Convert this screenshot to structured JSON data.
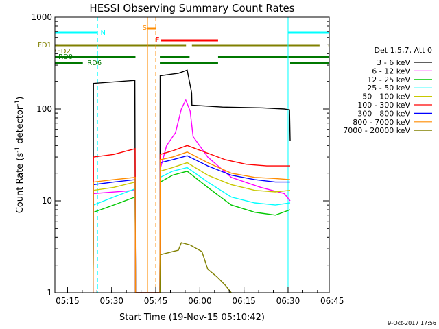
{
  "chart_data": {
    "type": "line",
    "title": "HESSI Observing Summary Count Rates",
    "xlabel": "Start Time (19-Nov-15 05:10:42)",
    "ylabel_main": "Count Rate (s",
    "ylabel_sup1": "-1",
    "ylabel_mid": " detector",
    "ylabel_sup2": "-1",
    "ylabel_end": ")",
    "y_scale": "log",
    "ylim": [
      1,
      1000
    ],
    "xlim_minutes": [
      0,
      93.3
    ],
    "x_ticks": [
      {
        "label": "05:15",
        "min": 4.3
      },
      {
        "label": "05:30",
        "min": 19.3
      },
      {
        "label": "05:45",
        "min": 34.3
      },
      {
        "label": "06:00",
        "min": 49.3
      },
      {
        "label": "06:15",
        "min": 64.3
      },
      {
        "label": "06:30",
        "min": 79.3
      },
      {
        "label": "06:45",
        "min": 94.3
      }
    ],
    "y_ticks": [
      {
        "label": "1",
        "v": 1
      },
      {
        "label": "10",
        "v": 10
      },
      {
        "label": "100",
        "v": 100
      },
      {
        "label": "1000",
        "v": 1000
      }
    ],
    "legend_title": "Det 1,5,7, Att 0",
    "legend_position": "right",
    "series": [
      {
        "name": "3 - 6 keV",
        "color": "#000000",
        "pts": [
          [
            13,
            1
          ],
          [
            13.1,
            190
          ],
          [
            27.2,
            205
          ],
          [
            27.4,
            1
          ],
          [
            35.7,
            1
          ],
          [
            35.8,
            230
          ],
          [
            42,
            245
          ],
          [
            45,
            265
          ],
          [
            46.5,
            150
          ],
          [
            46.6,
            110
          ],
          [
            57,
            105
          ],
          [
            70,
            103
          ],
          [
            78,
            100
          ],
          [
            79.8,
            98
          ],
          [
            80,
            45
          ]
        ]
      },
      {
        "name": "6 - 12 keV",
        "color": "#ff00ff",
        "pts": [
          [
            13,
            1
          ],
          [
            13.1,
            12
          ],
          [
            27.3,
            13
          ],
          [
            27.4,
            1
          ],
          [
            35.7,
            1
          ],
          [
            35.8,
            22
          ],
          [
            38,
            40
          ],
          [
            41,
            55
          ],
          [
            43,
            100
          ],
          [
            44.5,
            125
          ],
          [
            46,
            95
          ],
          [
            47,
            50
          ],
          [
            52,
            30
          ],
          [
            60,
            18
          ],
          [
            70,
            14
          ],
          [
            78,
            12
          ],
          [
            80,
            10
          ]
        ]
      },
      {
        "name": "12 - 25 keV",
        "color": "#00c800",
        "pts": [
          [
            13,
            1
          ],
          [
            13.1,
            7.5
          ],
          [
            20,
            9
          ],
          [
            27.3,
            11
          ],
          [
            27.4,
            1
          ],
          [
            35.7,
            1
          ],
          [
            35.8,
            16
          ],
          [
            40,
            19
          ],
          [
            45,
            21
          ],
          [
            52,
            14
          ],
          [
            60,
            9
          ],
          [
            68,
            7.5
          ],
          [
            75,
            7
          ],
          [
            80,
            8
          ]
        ]
      },
      {
        "name": "25 - 50 keV",
        "color": "#00ffff",
        "pts": [
          [
            13,
            1
          ],
          [
            13.1,
            9
          ],
          [
            20,
            11
          ],
          [
            27.3,
            13.5
          ],
          [
            27.4,
            1
          ],
          [
            35.7,
            1
          ],
          [
            35.8,
            18
          ],
          [
            40,
            21
          ],
          [
            45,
            23
          ],
          [
            52,
            16
          ],
          [
            60,
            11
          ],
          [
            68,
            9.5
          ],
          [
            75,
            9
          ],
          [
            80,
            9.5
          ]
        ]
      },
      {
        "name": "50 - 100 keV",
        "color": "#c8c800",
        "pts": [
          [
            13,
            1
          ],
          [
            13.1,
            13
          ],
          [
            20,
            14
          ],
          [
            27.3,
            16
          ],
          [
            27.4,
            1
          ],
          [
            35.7,
            1
          ],
          [
            35.8,
            21
          ],
          [
            40,
            23
          ],
          [
            45,
            26
          ],
          [
            52,
            19
          ],
          [
            60,
            15
          ],
          [
            68,
            13
          ],
          [
            75,
            12.5
          ],
          [
            80,
            13
          ]
        ]
      },
      {
        "name": "100 - 300 keV",
        "color": "#ff0000",
        "pts": [
          [
            13,
            1
          ],
          [
            13.1,
            30
          ],
          [
            20,
            32
          ],
          [
            27.3,
            37
          ],
          [
            27.4,
            1
          ],
          [
            35.7,
            1
          ],
          [
            35.8,
            32
          ],
          [
            40,
            35
          ],
          [
            45,
            40
          ],
          [
            52,
            33
          ],
          [
            58,
            28
          ],
          [
            65,
            25
          ],
          [
            72,
            24
          ],
          [
            80,
            24
          ]
        ]
      },
      {
        "name": "300 - 800 keV",
        "color": "#0000ff",
        "pts": [
          [
            13,
            1
          ],
          [
            13.1,
            15
          ],
          [
            20,
            16
          ],
          [
            27.3,
            17
          ],
          [
            27.4,
            1
          ],
          [
            35.7,
            1
          ],
          [
            35.8,
            26
          ],
          [
            40,
            28
          ],
          [
            45,
            31
          ],
          [
            52,
            24
          ],
          [
            60,
            19
          ],
          [
            68,
            17
          ],
          [
            75,
            16
          ],
          [
            80,
            16
          ]
        ]
      },
      {
        "name": "800 - 7000 keV",
        "color": "#ff8c00",
        "pts": [
          [
            13,
            1
          ],
          [
            13.1,
            16
          ],
          [
            20,
            17
          ],
          [
            27.3,
            18
          ],
          [
            27.4,
            1
          ],
          [
            35.7,
            1
          ],
          [
            35.8,
            28
          ],
          [
            40,
            30
          ],
          [
            45,
            34
          ],
          [
            52,
            26
          ],
          [
            60,
            20
          ],
          [
            68,
            18
          ],
          [
            75,
            17.5
          ],
          [
            80,
            17
          ]
        ]
      },
      {
        "name": "7000 - 20000 keV",
        "color": "#808000",
        "pts": [
          [
            35.8,
            1
          ],
          [
            36,
            2.6
          ],
          [
            42,
            2.9
          ],
          [
            43,
            3.5
          ],
          [
            46,
            3.3
          ],
          [
            50,
            2.8
          ],
          [
            52,
            1.8
          ],
          [
            55,
            1.5
          ],
          [
            58,
            1.2
          ],
          [
            60,
            1
          ]
        ]
      }
    ],
    "flags": [
      {
        "label": "N",
        "color": "#00ffff",
        "segments": [
          [
            0,
            14.5
          ],
          [
            79.3,
            93.3
          ]
        ],
        "label_at": 15.5
      },
      {
        "label": "S",
        "color": "#ff8c00",
        "segments": [
          [
            31.5,
            34.3
          ]
        ],
        "label_at": 29.8
      },
      {
        "label": "F",
        "color": "#ff0000",
        "segments": [
          [
            36,
            55.5
          ]
        ],
        "label_at": 34.2
      },
      {
        "label": "FD1",
        "color": "#808000",
        "segments": [
          [
            0,
            44.6
          ],
          [
            46.6,
            90
          ],
          [
            93,
            93.3
          ]
        ],
        "label_at": -5
      },
      {
        "label": "FD2",
        "color": "#808000",
        "segments": [
          [
            0,
            0.4
          ]
        ],
        "label_at": 0.7
      },
      {
        "label": "RD0",
        "color": "#007800",
        "segments": [
          [
            0,
            27.4
          ],
          [
            35.7,
            45.8
          ],
          [
            55.5,
            93.3
          ]
        ],
        "label_at": 1.2
      },
      {
        "label": "RD6",
        "color": "#007800",
        "segments": [
          [
            0,
            9.5
          ],
          [
            35.7,
            55.5
          ],
          [
            80,
            93.3
          ]
        ],
        "label_at": 11
      }
    ],
    "vertical_markers": [
      {
        "min": 14.5,
        "color": "#00ffff",
        "style": "dashed"
      },
      {
        "min": 31.5,
        "color": "#ff8c00",
        "style": "solid"
      },
      {
        "min": 34.3,
        "color": "#ff8c00",
        "style": "dashed"
      },
      {
        "min": 79.3,
        "color": "#00ffff",
        "style": "solid"
      },
      {
        "min": 93.3,
        "color": "#00ffff",
        "style": "dashed"
      }
    ]
  },
  "timestamp": "9-Oct-2017 17:56"
}
